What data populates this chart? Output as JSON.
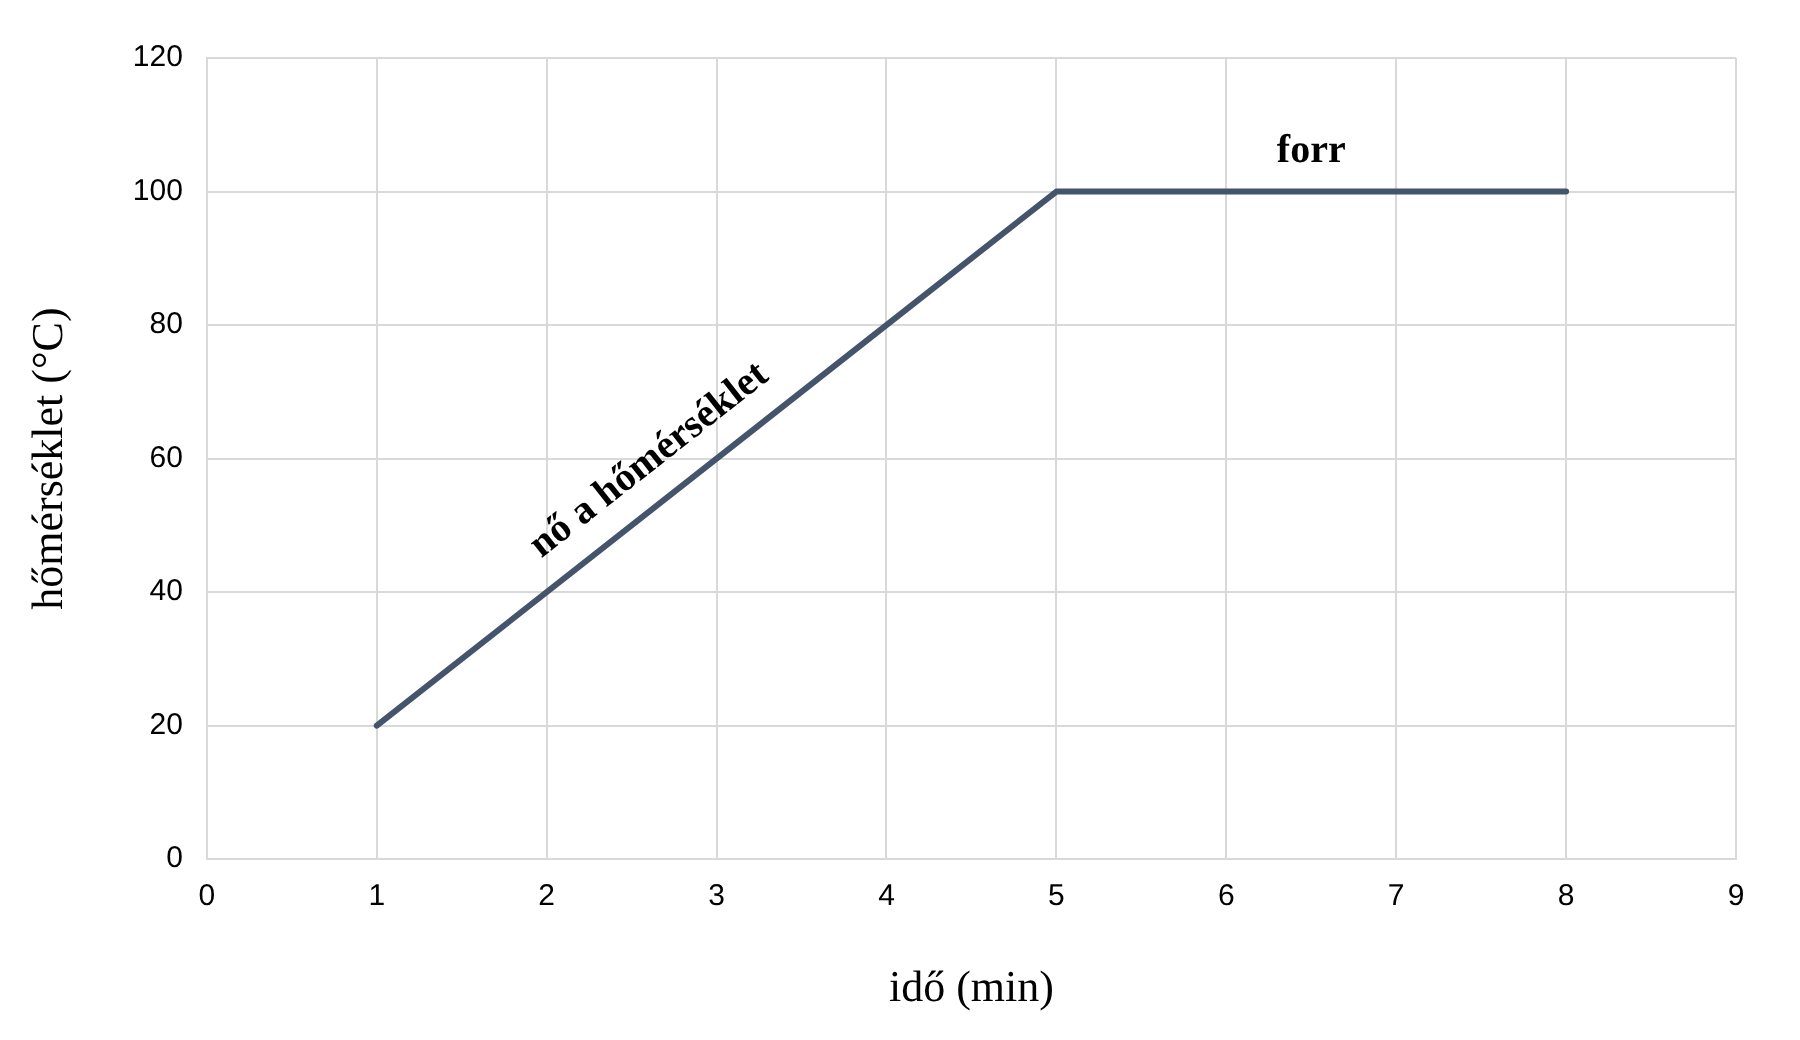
{
  "chart_data": {
    "type": "line",
    "xlabel": "idő (min)",
    "ylabel": "hőmérséklet (°C)",
    "x": [
      1,
      5,
      8
    ],
    "series": [
      {
        "color": "#44546a",
        "values": [
          20,
          100,
          100
        ]
      }
    ],
    "xlim": [
      0,
      9
    ],
    "xticks": [
      0,
      1,
      2,
      3,
      4,
      5,
      6,
      7,
      8,
      9
    ],
    "ylim": [
      0,
      120
    ],
    "yticks": [
      0,
      20,
      40,
      60,
      80,
      100,
      120
    ],
    "grid": true,
    "legend": false,
    "marker": "none",
    "line_style": "solid",
    "annotations": [
      {
        "text": "nő a hőmérséklet",
        "x": 2.75,
        "y": 55
      },
      {
        "text": "forr",
        "x": 6.5,
        "y": 100
      }
    ]
  }
}
